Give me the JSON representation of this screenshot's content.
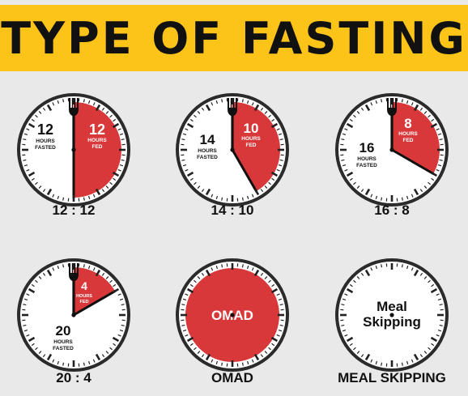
{
  "title": "TYPE OF FASTING",
  "clocks": [
    {
      "id": "12-12",
      "fasted_hours": 12,
      "fed_hours": 12,
      "fasted_num": "12",
      "fasted_label": "HOURS FASTED",
      "fed_num": "12",
      "fed_label": "HOURS FED",
      "caption": "12 : 12",
      "fork": true
    },
    {
      "id": "14-10",
      "fasted_hours": 14,
      "fed_hours": 10,
      "fasted_num": "14",
      "fasted_label": "HOURS FASTED",
      "fed_num": "10",
      "fed_label": "HOURS FED",
      "caption": "14 : 10",
      "fork": true
    },
    {
      "id": "16-8",
      "fasted_hours": 16,
      "fed_hours": 8,
      "fasted_num": "16",
      "fasted_label": "HOURS FASTED",
      "fed_num": "8",
      "fed_label": "HOURS FED",
      "caption": "16 : 8",
      "fork": true
    },
    {
      "id": "20-4",
      "fasted_hours": 20,
      "fed_hours": 4,
      "fasted_num": "20",
      "fasted_label": "HOURS FASTED",
      "fed_num": "4",
      "fed_label": "HOURS FED",
      "caption": "20 : 4",
      "fork": true
    },
    {
      "id": "omad",
      "center_text": "OMAD",
      "caption": "OMAD",
      "full_red_disc": true,
      "fork": false
    },
    {
      "id": "meal-skipping",
      "center_text": "Meal Skipping",
      "caption": "MEAL SKIPPING",
      "fork": false
    }
  ],
  "colors": {
    "banner": "#fcc419",
    "background": "#e9e9e9",
    "fed_red": "#d9383a",
    "ink": "#111111"
  }
}
